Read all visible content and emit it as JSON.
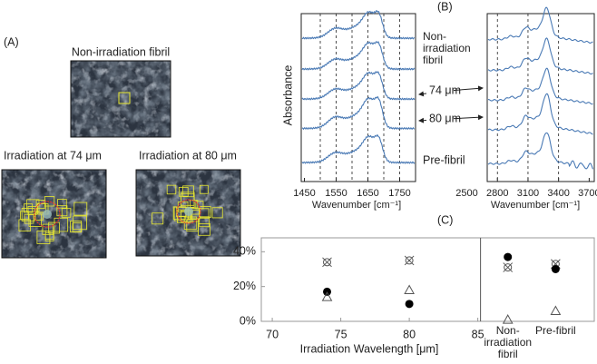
{
  "panel_a": {
    "label": "(A)",
    "images": [
      {
        "caption": "Non-irradiation fibril"
      },
      {
        "caption": "Irradiation at 74 μm"
      },
      {
        "caption": "Irradiation at 80 μm"
      }
    ]
  },
  "panel_b": {
    "label": "(B)",
    "y_label": "Absorbance",
    "spectra_labels": [
      "Non-irradiation fibril",
      "74 μm",
      "80 μm",
      "Pre-fibril"
    ],
    "plots": [
      {
        "x_label": "Wavenumber [cm⁻¹]",
        "xlim": [
          1440,
          1800
        ],
        "xticks": [
          1450,
          1550,
          1650,
          1750
        ],
        "dashed_lines": [
          1500,
          1550,
          1600,
          1650,
          1700,
          1750
        ]
      },
      {
        "x_label": "Wavenumber [cm⁻¹]",
        "xlim": [
          2700,
          3750
        ],
        "xticks": [
          2500,
          2800,
          3100,
          3400,
          3700
        ],
        "dashed_lines": [
          2800,
          3100,
          3400
        ]
      }
    ]
  },
  "chart_data": {
    "type": "scatter",
    "label": "(C)",
    "x_label": "Irradiation Wavelength [μm]",
    "x": [
      74,
      80
    ],
    "categories": [
      "Non-irradiation fibril",
      "Pre-fibril"
    ],
    "xlim": [
      69.2,
      93.5
    ],
    "xticks": [
      70,
      75,
      80,
      85
    ],
    "ylim": [
      0,
      48
    ],
    "yticks": [
      {
        "value": 0,
        "label": "0%"
      },
      {
        "value": 20,
        "label": "20%"
      },
      {
        "value": 40,
        "label": "40%"
      }
    ],
    "grid": false,
    "series": [
      {
        "marker": "crossed-circle",
        "color": "#555555",
        "values": [
          34,
          35
        ],
        "category_values": [
          31,
          33
        ]
      },
      {
        "marker": "filled-circle",
        "color": "#000000",
        "values": [
          17,
          10
        ],
        "category_values": [
          37,
          30
        ]
      },
      {
        "marker": "triangle",
        "color": "#555555",
        "values": [
          14,
          18
        ],
        "category_values": [
          1,
          6
        ]
      }
    ]
  }
}
